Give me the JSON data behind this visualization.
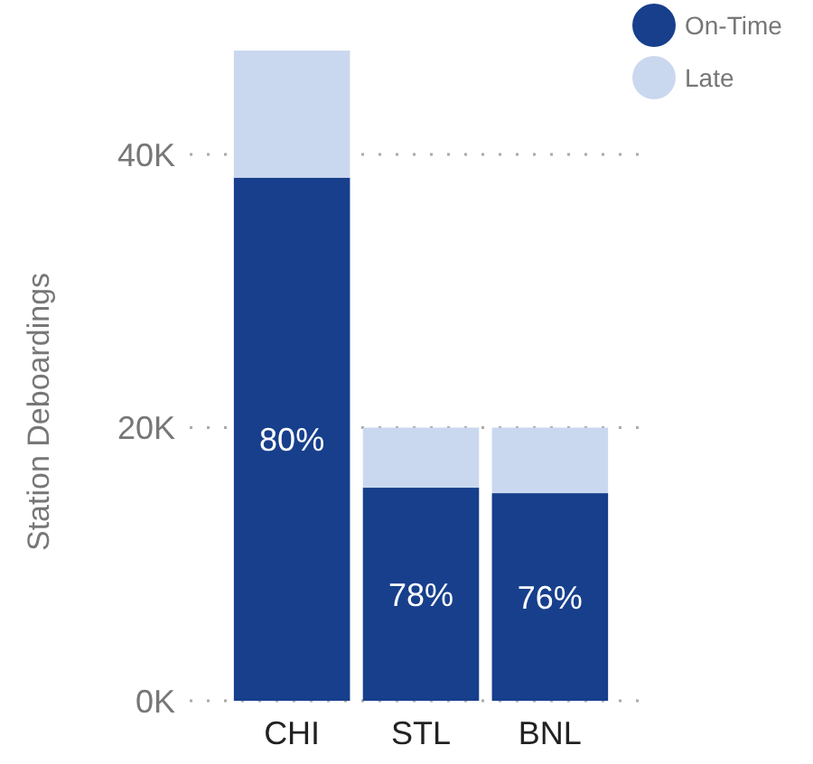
{
  "chart_data": {
    "type": "bar",
    "stacked": true,
    "ylabel": "Station Deboardings",
    "categories": [
      "CHI",
      "STL",
      "BNL"
    ],
    "series": [
      {
        "name": "On-Time",
        "color": "#173f8c",
        "values": [
          38300,
          15600,
          15200
        ]
      },
      {
        "name": "Late",
        "color": "#cad8ef",
        "values": [
          9300,
          4400,
          4800
        ]
      }
    ],
    "annotations": [
      "80%",
      "78%",
      "76%"
    ],
    "ylim": [
      0,
      47600
    ],
    "yticks": [
      {
        "value": 0,
        "label": "0K"
      },
      {
        "value": 20000,
        "label": "20K"
      },
      {
        "value": 40000,
        "label": "40K"
      }
    ],
    "grid": "y",
    "legend": "top right"
  }
}
